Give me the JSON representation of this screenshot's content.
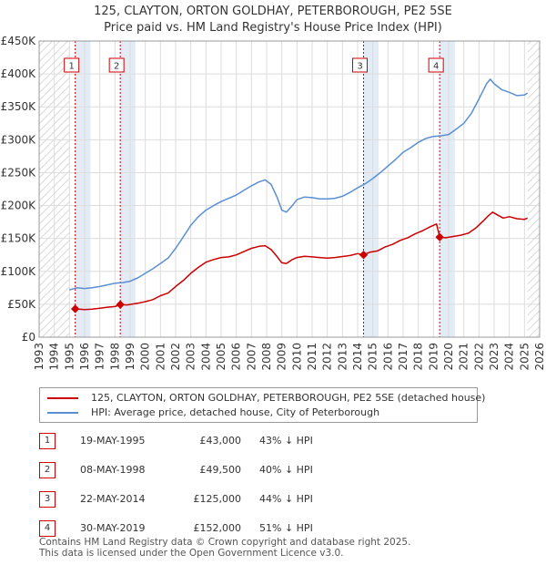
{
  "title_line1": "125, CLAYTON, ORTON GOLDHAY, PETERBOROUGH, PE2 5SE",
  "title_line2": "Price paid vs. HM Land Registry's House Price Index (HPI)",
  "colors": {
    "property": "#cc0000",
    "hpi": "#5b8fd4",
    "shade": "#dce6f2",
    "hatch": "#cccccc"
  },
  "chart_data": {
    "type": "line",
    "title": "125, CLAYTON, ORTON GOLDHAY, PETERBOROUGH, PE2 5SE",
    "subtitle": "Price paid vs. HM Land Registry's House Price Index (HPI)",
    "xlim": [
      1993,
      2026
    ],
    "ylim": [
      0,
      450000
    ],
    "y_ticks": [
      0,
      50000,
      100000,
      150000,
      200000,
      250000,
      300000,
      350000,
      400000,
      450000
    ],
    "y_tick_labels": [
      "£0",
      "£50K",
      "£100K",
      "£150K",
      "£200K",
      "£250K",
      "£300K",
      "£350K",
      "£400K",
      "£450K"
    ],
    "x_ticks": [
      "1993",
      "1994",
      "1995",
      "1996",
      "1997",
      "1998",
      "1999",
      "2000",
      "2001",
      "2002",
      "2003",
      "2004",
      "2005",
      "2006",
      "2007",
      "2008",
      "2009",
      "2010",
      "2011",
      "2012",
      "2013",
      "2014",
      "2015",
      "2016",
      "2017",
      "2018",
      "2019",
      "2020",
      "2021",
      "2022",
      "2023",
      "2024",
      "2025",
      "2026"
    ],
    "hatched_ranges": [
      [
        1993,
        1995.0
      ],
      [
        2025.2,
        2026
      ]
    ],
    "grid": true,
    "series": [
      {
        "name": "125, CLAYTON, ORTON GOLDHAY, PETERBOROUGH, PE2 5SE (detached house)",
        "color": "#cc0000",
        "points": [
          [
            1995.38,
            43000
          ],
          [
            1996.0,
            42000
          ],
          [
            1996.5,
            42500
          ],
          [
            1997.0,
            44000
          ],
          [
            1997.5,
            45500
          ],
          [
            1998.0,
            46500
          ],
          [
            1998.35,
            49500
          ],
          [
            1998.8,
            49000
          ],
          [
            1999.5,
            51500
          ],
          [
            2000.0,
            54000
          ],
          [
            2000.5,
            57000
          ],
          [
            2001.0,
            63000
          ],
          [
            2001.5,
            67000
          ],
          [
            2002.0,
            77000
          ],
          [
            2002.5,
            86000
          ],
          [
            2003.0,
            97000
          ],
          [
            2003.5,
            106000
          ],
          [
            2004.0,
            114000
          ],
          [
            2004.5,
            118000
          ],
          [
            2005.0,
            121000
          ],
          [
            2005.5,
            122000
          ],
          [
            2006.0,
            125000
          ],
          [
            2006.5,
            130000
          ],
          [
            2007.0,
            135000
          ],
          [
            2007.5,
            138000
          ],
          [
            2007.9,
            139000
          ],
          [
            2008.3,
            133000
          ],
          [
            2008.7,
            122000
          ],
          [
            2009.0,
            113000
          ],
          [
            2009.3,
            112000
          ],
          [
            2009.7,
            118000
          ],
          [
            2010.0,
            121000
          ],
          [
            2010.5,
            123000
          ],
          [
            2011.0,
            122000
          ],
          [
            2011.5,
            121000
          ],
          [
            2012.0,
            120000
          ],
          [
            2012.5,
            121000
          ],
          [
            2013.0,
            122500
          ],
          [
            2013.5,
            124000
          ],
          [
            2014.0,
            127000
          ],
          [
            2014.39,
            125000
          ],
          [
            2014.8,
            129000
          ],
          [
            2015.3,
            131000
          ],
          [
            2015.8,
            137000
          ],
          [
            2016.3,
            141000
          ],
          [
            2016.8,
            147000
          ],
          [
            2017.3,
            151000
          ],
          [
            2017.8,
            157000
          ],
          [
            2018.3,
            162000
          ],
          [
            2018.8,
            168000
          ],
          [
            2019.2,
            172000
          ],
          [
            2019.41,
            152000
          ],
          [
            2019.8,
            151000
          ],
          [
            2020.3,
            153000
          ],
          [
            2020.8,
            155000
          ],
          [
            2021.3,
            158000
          ],
          [
            2021.8,
            166000
          ],
          [
            2022.3,
            177000
          ],
          [
            2022.6,
            184000
          ],
          [
            2022.9,
            190000
          ],
          [
            2023.2,
            186000
          ],
          [
            2023.6,
            181000
          ],
          [
            2024.0,
            183000
          ],
          [
            2024.5,
            180000
          ],
          [
            2025.0,
            179000
          ],
          [
            2025.2,
            181000
          ]
        ]
      },
      {
        "name": "HPI: Average price, detached house, City of Peterborough",
        "color": "#5b8fd4",
        "points": [
          [
            1995.0,
            72000
          ],
          [
            1995.5,
            75000
          ],
          [
            1996.0,
            74000
          ],
          [
            1996.5,
            75000
          ],
          [
            1997.0,
            77000
          ],
          [
            1997.5,
            79500
          ],
          [
            1998.0,
            82000
          ],
          [
            1998.5,
            83000
          ],
          [
            1999.0,
            85000
          ],
          [
            1999.5,
            90000
          ],
          [
            2000.0,
            97000
          ],
          [
            2000.5,
            104000
          ],
          [
            2001.0,
            112000
          ],
          [
            2001.5,
            120000
          ],
          [
            2002.0,
            135000
          ],
          [
            2002.5,
            152000
          ],
          [
            2003.0,
            170000
          ],
          [
            2003.5,
            183000
          ],
          [
            2004.0,
            193000
          ],
          [
            2004.5,
            200000
          ],
          [
            2005.0,
            206000
          ],
          [
            2005.5,
            211000
          ],
          [
            2006.0,
            216000
          ],
          [
            2006.5,
            223000
          ],
          [
            2007.0,
            230000
          ],
          [
            2007.5,
            236000
          ],
          [
            2007.9,
            239000
          ],
          [
            2008.3,
            232000
          ],
          [
            2008.7,
            212000
          ],
          [
            2009.0,
            193000
          ],
          [
            2009.3,
            190000
          ],
          [
            2009.7,
            200000
          ],
          [
            2010.0,
            209000
          ],
          [
            2010.5,
            213000
          ],
          [
            2011.0,
            212000
          ],
          [
            2011.5,
            210000
          ],
          [
            2012.0,
            210000
          ],
          [
            2012.5,
            211000
          ],
          [
            2013.0,
            214000
          ],
          [
            2013.5,
            220000
          ],
          [
            2014.0,
            227000
          ],
          [
            2014.5,
            233000
          ],
          [
            2015.0,
            241000
          ],
          [
            2015.5,
            250000
          ],
          [
            2016.0,
            260000
          ],
          [
            2016.5,
            270000
          ],
          [
            2017.0,
            281000
          ],
          [
            2017.5,
            288000
          ],
          [
            2018.0,
            296000
          ],
          [
            2018.5,
            302000
          ],
          [
            2019.0,
            305000
          ],
          [
            2019.5,
            306000
          ],
          [
            2020.0,
            308000
          ],
          [
            2020.5,
            316000
          ],
          [
            2021.0,
            325000
          ],
          [
            2021.5,
            340000
          ],
          [
            2022.0,
            362000
          ],
          [
            2022.5,
            385000
          ],
          [
            2022.75,
            392000
          ],
          [
            2023.0,
            385000
          ],
          [
            2023.5,
            376000
          ],
          [
            2024.0,
            372000
          ],
          [
            2024.5,
            367000
          ],
          [
            2025.0,
            368000
          ],
          [
            2025.2,
            371000
          ]
        ]
      }
    ],
    "sales": [
      {
        "label": "1",
        "date": "19-MAY-1995",
        "x": 1995.38,
        "price": 43000
      },
      {
        "label": "2",
        "date": "08-MAY-1998",
        "x": 1998.35,
        "price": 49500
      },
      {
        "label": "3",
        "date": "22-MAY-2014",
        "x": 2014.39,
        "price": 125000
      },
      {
        "label": "4",
        "date": "30-MAY-2019",
        "x": 2019.41,
        "price": 152000
      }
    ]
  },
  "legend": {
    "property": "125, CLAYTON, ORTON GOLDHAY, PETERBOROUGH, PE2 5SE (detached house)",
    "hpi": "HPI: Average price, detached house, City of Peterborough"
  },
  "sales_table": [
    {
      "num": "1",
      "date": "19-MAY-1995",
      "price": "£43,000",
      "hpi": "43% ↓ HPI"
    },
    {
      "num": "2",
      "date": "08-MAY-1998",
      "price": "£49,500",
      "hpi": "40% ↓ HPI"
    },
    {
      "num": "3",
      "date": "22-MAY-2014",
      "price": "£125,000",
      "hpi": "44% ↓ HPI"
    },
    {
      "num": "4",
      "date": "30-MAY-2019",
      "price": "£152,000",
      "hpi": "51% ↓ HPI"
    }
  ],
  "footer": {
    "line1": "Contains HM Land Registry data © Crown copyright and database right 2025.",
    "line2": "This data is licensed under the Open Government Licence v3.0."
  }
}
